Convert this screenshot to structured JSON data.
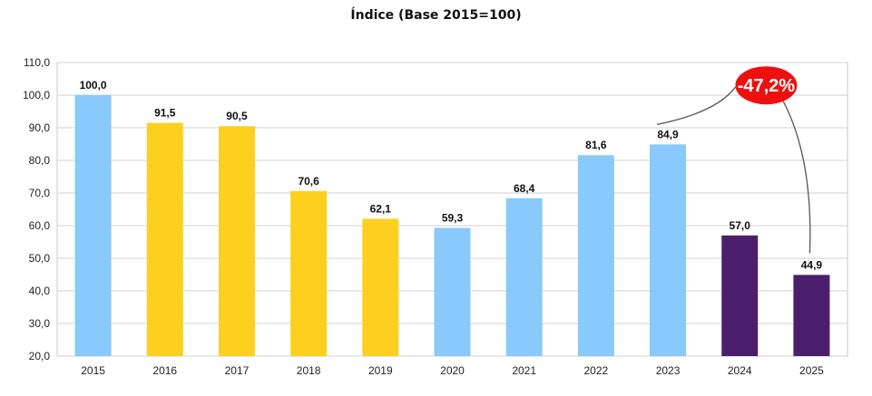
{
  "chart_data": {
    "type": "bar",
    "title": "Índice (Base 2015=100)",
    "xlabel": "",
    "ylabel": "",
    "ylim": [
      20,
      110
    ],
    "yticks": [
      "20,0",
      "30,0",
      "40,0",
      "50,0",
      "60,0",
      "70,0",
      "80,0",
      "90,0",
      "100,0",
      "110,0"
    ],
    "grid": true,
    "categories": [
      "2015",
      "2016",
      "2017",
      "2018",
      "2019",
      "2020",
      "2021",
      "2022",
      "2023",
      "2024",
      "2025"
    ],
    "values": [
      100.0,
      91.5,
      90.5,
      70.6,
      62.1,
      59.3,
      68.4,
      81.6,
      84.9,
      57.0,
      44.9
    ],
    "value_labels": [
      "100,0",
      "91,5",
      "90,5",
      "70,6",
      "62,1",
      "59,3",
      "68,4",
      "81,6",
      "84,9",
      "57,0",
      "44,9"
    ],
    "bar_colors": [
      "#89c9fb",
      "#fdd01f",
      "#fdd01f",
      "#fdd01f",
      "#fdd01f",
      "#89c9fb",
      "#89c9fb",
      "#89c9fb",
      "#89c9fb",
      "#4b1f6e",
      "#4b1f6e"
    ],
    "annotation": {
      "text": "-47,2%",
      "from": "2023",
      "to": "2025",
      "color": "#ee0f0f"
    }
  }
}
